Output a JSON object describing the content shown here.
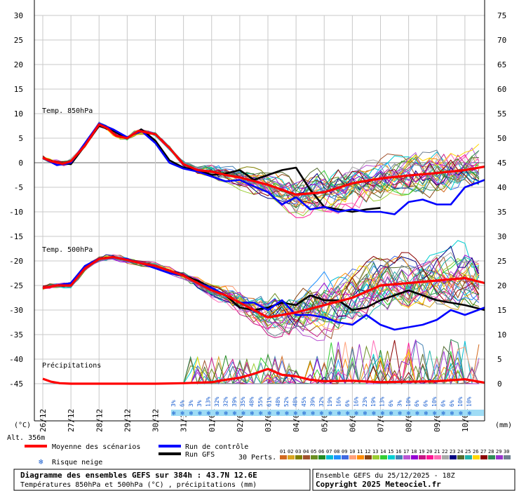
{
  "chart_data": {
    "type": "line",
    "title": "Diagramme des ensembles GEFS sur 384h : 43.7N 12.6E",
    "subtitle": "Températures 850hPa et 500hPa (°C) , précipitations (mm)",
    "left_axis": {
      "unit": "(°C)",
      "ticks": [
        30,
        25,
        20,
        15,
        10,
        5,
        0,
        -5,
        -10,
        -15,
        -20,
        -25,
        -30,
        -35,
        -40,
        -45
      ],
      "range": [
        -45,
        30
      ]
    },
    "right_axis": {
      "unit": "(mm)",
      "ticks": [
        75,
        70,
        65,
        60,
        55,
        50,
        45,
        40,
        35,
        30,
        25,
        20,
        15,
        10,
        5,
        0
      ],
      "range": [
        0,
        75
      ]
    },
    "x_dates": [
      "26/12",
      "27/12",
      "28/12",
      "29/12",
      "30/12",
      "31/12",
      "01/01",
      "02/01",
      "03/01",
      "04/01",
      "05/01",
      "06/01",
      "07/01",
      "08/01",
      "09/01",
      "10/01"
    ],
    "altitude": "Alt. 356m",
    "panel_labels": {
      "t850": "Temp. 850hPa",
      "t500": "Temp. 500hPa",
      "precip": "Précipitations"
    },
    "snow_risk_percent": [
      "3%",
      "6%",
      "3%",
      "3%",
      "13%",
      "32%",
      "32%",
      "39%",
      "35%",
      "48%",
      "55%",
      "61%",
      "48%",
      "52%",
      "48%",
      "45%",
      "39%",
      "32%",
      "19%",
      "16%",
      "6%",
      "16%",
      "23%",
      "19%",
      "13%",
      "6%",
      "3%",
      "10%",
      "6%",
      "6%",
      "10%",
      "6%",
      "6%",
      "10%",
      "10%"
    ],
    "series": [
      {
        "name": "Moyenne des scénarios",
        "panel": "t850",
        "color": "#ff0000",
        "x": [
          0,
          0.3,
          0.7,
          1.0,
          1.5,
          2.0,
          2.3,
          2.6,
          3.0,
          3.4,
          4.0,
          4.5,
          5.0,
          5.5,
          6.0,
          6.5,
          7.0,
          8.0,
          9.0,
          10.0,
          11.0,
          12.0,
          13.0,
          14.0,
          15.0,
          15.7
        ],
        "values": [
          1,
          0.3,
          -0.2,
          0.3,
          3.5,
          7.8,
          7,
          5.5,
          5,
          6.5,
          5.8,
          3,
          -0.3,
          -1.5,
          -1.8,
          -2.5,
          -3,
          -4.5,
          -6.5,
          -6,
          -4.2,
          -3.2,
          -2.6,
          -2.1,
          -1.5,
          -0.8
        ]
      },
      {
        "name": "Run de contrôle",
        "panel": "t850",
        "color": "#0000ff",
        "x": [
          0,
          0.5,
          1.0,
          1.5,
          2.0,
          2.5,
          3.0,
          3.5,
          4.0,
          4.5,
          5.0,
          5.5,
          6.0,
          6.5,
          7.0,
          7.5,
          8.0,
          8.5,
          9.0,
          9.5,
          10.0,
          10.5,
          11.0,
          11.5,
          12.0,
          12.5,
          13.0,
          13.5,
          14.0,
          14.5,
          15.0,
          15.7
        ],
        "values": [
          1,
          -0.5,
          0,
          4,
          8,
          6.8,
          5.2,
          6.5,
          4,
          0,
          -1.2,
          -1.8,
          -2.8,
          -3.8,
          -3.5,
          -4.8,
          -6,
          -8.5,
          -7,
          -9.5,
          -9,
          -10,
          -9.5,
          -10,
          -10,
          -10.5,
          -8,
          -7.5,
          -8.5,
          -8.5,
          -5,
          -3.5
        ]
      },
      {
        "name": "Run GFS",
        "panel": "t850",
        "color": "#000000",
        "x": [
          0,
          0.5,
          1.0,
          1.5,
          2.0,
          2.5,
          3.0,
          3.5,
          4.0,
          4.5,
          5.0,
          5.5,
          6.0,
          6.5,
          7.0,
          7.5,
          8.0,
          8.5,
          9.0,
          9.5,
          10.0,
          10.5,
          11.0,
          11.5,
          12.0
        ],
        "values": [
          1,
          0,
          -0.3,
          3.5,
          7.5,
          6.5,
          5,
          6.8,
          4.5,
          0.5,
          -1,
          -1.5,
          -2.5,
          -2.2,
          -1.5,
          -3.5,
          -2.5,
          -1.5,
          -1,
          -5.5,
          -9,
          -9.5,
          -10,
          -9.5,
          -9.2
        ]
      },
      {
        "name": "Moyenne des scénarios",
        "panel": "t500",
        "color": "#ff0000",
        "x": [
          0,
          0.5,
          1.0,
          1.5,
          2.0,
          2.5,
          3.0,
          3.5,
          4.0,
          4.5,
          5.0,
          5.5,
          6.0,
          6.5,
          7.0,
          8.0,
          9.0,
          10.0,
          11.0,
          12.0,
          13.0,
          14.0,
          15.0,
          15.7
        ],
        "values": [
          -25.5,
          -25,
          -25,
          -21.5,
          -19.6,
          -19.2,
          -19.8,
          -20.5,
          -21,
          -22,
          -23,
          -24.5,
          -26,
          -27,
          -28.5,
          -31.5,
          -30.5,
          -29,
          -27.5,
          -25,
          -24.5,
          -24,
          -23.5,
          -24.5
        ]
      },
      {
        "name": "Run de contrôle",
        "panel": "t500",
        "color": "#0000ff",
        "x": [
          0,
          0.5,
          1.0,
          1.5,
          2.0,
          2.5,
          3.0,
          3.5,
          4.0,
          4.5,
          5.0,
          5.5,
          6.0,
          6.5,
          7.0,
          7.5,
          8.0,
          8.5,
          9.0,
          9.5,
          10.0,
          10.5,
          11.0,
          11.5,
          12.0,
          12.5,
          13.0,
          13.5,
          14.0,
          14.5,
          15.0,
          15.7
        ],
        "values": [
          -25.5,
          -25,
          -24.5,
          -21,
          -19.5,
          -19.3,
          -19.6,
          -20.5,
          -21.5,
          -22.5,
          -23,
          -24.5,
          -25.5,
          -27,
          -28.5,
          -28.5,
          -30,
          -28,
          -31,
          -31,
          -31.5,
          -32.5,
          -33,
          -31,
          -33,
          -34,
          -33.5,
          -33,
          -32,
          -30,
          -31,
          -29.5
        ]
      },
      {
        "name": "Run GFS",
        "panel": "t500",
        "color": "#000000",
        "x": [
          0,
          0.5,
          1.0,
          1.5,
          2.0,
          2.5,
          3.0,
          3.5,
          4.0,
          4.5,
          5.0,
          5.5,
          6.0,
          6.5,
          7.0,
          7.5,
          8.0,
          8.5,
          9.0,
          9.5,
          10.0,
          10.5,
          11.0,
          11.5,
          12.0,
          12.5,
          13.0,
          13.5,
          14.0,
          14.5,
          15.0,
          15.7
        ],
        "values": [
          -25.5,
          -25,
          -24.5,
          -21.2,
          -19.5,
          -19.2,
          -19.8,
          -20.5,
          -21,
          -22,
          -23,
          -24,
          -25.5,
          -27,
          -29.5,
          -30,
          -29.5,
          -28.5,
          -29,
          -27,
          -28,
          -28,
          -30,
          -29.5,
          -28,
          -27,
          -26,
          -27,
          -28,
          -28.5,
          -29,
          -30
        ]
      },
      {
        "name": "Moyenne des scénarios",
        "panel": "precip",
        "color": "#ff0000",
        "x": [
          0,
          0.3,
          0.6,
          1.0,
          2.0,
          3.0,
          4.0,
          5.0,
          6.0,
          6.5,
          7.0,
          7.5,
          8.0,
          8.5,
          9.0,
          9.5,
          10.0,
          11.0,
          12.0,
          13.0,
          14.0,
          15.0,
          15.7
        ],
        "values": [
          1,
          0.4,
          0.1,
          0,
          0,
          0,
          0,
          0.1,
          0.3,
          0.8,
          1.2,
          2,
          3,
          1.8,
          1.5,
          0.8,
          0.5,
          0.6,
          0.3,
          0.4,
          0.5,
          0.9,
          0.2
        ]
      }
    ],
    "legend": {
      "mean": "Moyenne des scénarios",
      "control": "Run de contrôle",
      "gfs": "Run GFS",
      "perts": "30 Perts.",
      "snow": "Risque neige",
      "pert_numbers": [
        "01",
        "02",
        "03",
        "04",
        "05",
        "06",
        "07",
        "08",
        "09",
        "10",
        "11",
        "12",
        "13",
        "14",
        "15",
        "16",
        "17",
        "18",
        "19",
        "20",
        "21",
        "22",
        "23",
        "24",
        "25",
        "26",
        "27",
        "28",
        "29",
        "30"
      ],
      "pert_colors": [
        "#d2691e",
        "#daa520",
        "#808000",
        "#a0522d",
        "#6b8e23",
        "#228b22",
        "#00bcd4",
        "#1e90ff",
        "#4169e1",
        "#ffa07a",
        "#ff8c00",
        "#8b4513",
        "#9acd32",
        "#32cd32",
        "#00ced1",
        "#4682b4",
        "#ba55d3",
        "#9400d3",
        "#c71585",
        "#ff1493",
        "#ff69b4",
        "#a9a9a9",
        "#000080",
        "#556b2f",
        "#20b2aa",
        "#ffd700",
        "#8b0000",
        "#2e8b57",
        "#9932cc",
        "#708090"
      ]
    },
    "footer": {
      "run": "Ensemble GEFS du 25/12/2025 - 18Z",
      "copyright": "Copyright 2025 Meteociel.fr"
    }
  }
}
